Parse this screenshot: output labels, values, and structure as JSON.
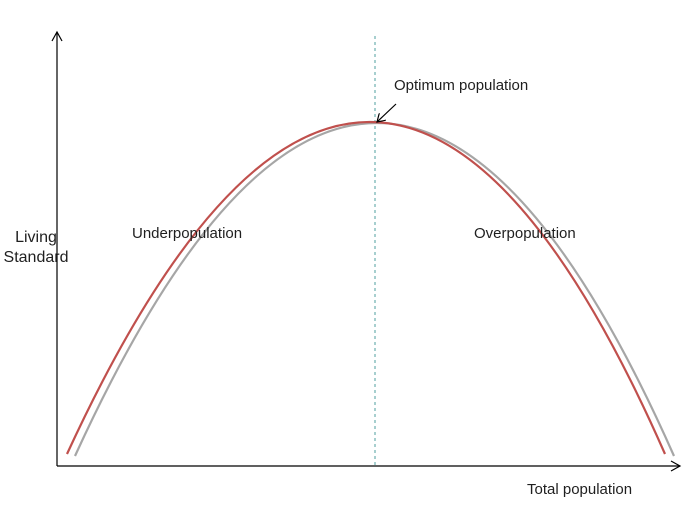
{
  "diagram": {
    "y_axis_label": "Living Standard",
    "x_axis_label": "Total population",
    "annotations": {
      "optimum": "Optimum population",
      "underpopulation": "Underpopulation",
      "overpopulation": "Overpopulation"
    },
    "colors": {
      "axis": "#000000",
      "curve_primary": "#c0504d",
      "curve_secondary": "#a6a6a6",
      "optimum_line": "#4f9f9f",
      "arrow": "#000000"
    }
  }
}
